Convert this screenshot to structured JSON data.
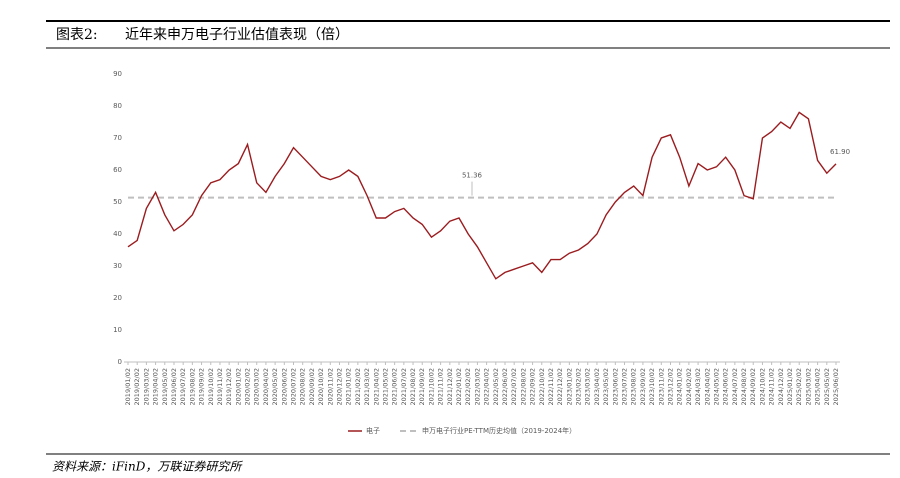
{
  "header": {
    "label": "图表2:",
    "title": "近年来申万电子行业估值表现（倍）"
  },
  "chart_data": {
    "type": "line",
    "categories": [
      "2019/01/02",
      "2019/02/02",
      "2019/03/02",
      "2019/04/02",
      "2019/05/02",
      "2019/06/02",
      "2019/07/02",
      "2019/08/02",
      "2019/09/02",
      "2019/10/02",
      "2019/11/02",
      "2019/12/02",
      "2020/01/02",
      "2020/02/02",
      "2020/03/02",
      "2020/04/02",
      "2020/05/02",
      "2020/06/02",
      "2020/07/02",
      "2020/08/02",
      "2020/09/02",
      "2020/10/02",
      "2020/11/02",
      "2020/12/02",
      "2021/01/02",
      "2021/02/02",
      "2021/03/02",
      "2021/04/02",
      "2021/05/02",
      "2021/06/02",
      "2021/07/02",
      "2021/08/02",
      "2021/09/02",
      "2021/10/02",
      "2021/11/02",
      "2021/12/02",
      "2022/01/02",
      "2022/02/02",
      "2022/03/02",
      "2022/04/02",
      "2022/05/02",
      "2022/06/02",
      "2022/07/02",
      "2022/08/02",
      "2022/09/02",
      "2022/10/02",
      "2022/11/02",
      "2022/12/02",
      "2023/01/02",
      "2023/02/02",
      "2023/03/02",
      "2023/04/02",
      "2023/05/02",
      "2023/06/02",
      "2023/07/02",
      "2023/08/02",
      "2023/09/02",
      "2023/10/02",
      "2023/11/02",
      "2023/12/02",
      "2024/01/02",
      "2024/02/02",
      "2024/03/02",
      "2024/04/02",
      "2024/05/02",
      "2024/06/02",
      "2024/07/02",
      "2024/08/02",
      "2024/09/02",
      "2024/10/02",
      "2024/11/02",
      "2024/12/02",
      "2025/01/02",
      "2025/02/02",
      "2025/03/02",
      "2025/04/02",
      "2025/05/02",
      "2025/06/02"
    ],
    "series": [
      {
        "name": "电子",
        "color": "#9b1c1f",
        "values": [
          36,
          38,
          48,
          53,
          46,
          41,
          43,
          46,
          52,
          56,
          57,
          60,
          62,
          68,
          56,
          53,
          58,
          62,
          67,
          64,
          61,
          58,
          57,
          58,
          60,
          58,
          52,
          45,
          45,
          47,
          48,
          45,
          43,
          39,
          41,
          44,
          45,
          40,
          36,
          31,
          26,
          28,
          29,
          30,
          31,
          28,
          32,
          32,
          34,
          35,
          37,
          40,
          46,
          50,
          53,
          55,
          52,
          64,
          70,
          71,
          64,
          55,
          62,
          60,
          61,
          64,
          60,
          52,
          51,
          70,
          72,
          75,
          73,
          78,
          76,
          63,
          59,
          61.9
        ],
        "value_labels": [
          null,
          null,
          null,
          null,
          null,
          null,
          null,
          null,
          null,
          null,
          null,
          null,
          null,
          null,
          null,
          null,
          null,
          null,
          null,
          null,
          null,
          null,
          null,
          null,
          null,
          null,
          null,
          null,
          null,
          null,
          null,
          null,
          null,
          null,
          null,
          null,
          null,
          null,
          null,
          null,
          null,
          null,
          null,
          null,
          null,
          null,
          null,
          null,
          null,
          null,
          null,
          null,
          null,
          null,
          null,
          null,
          null,
          null,
          null,
          null,
          null,
          null,
          null,
          null,
          null,
          null,
          null,
          null,
          null,
          null,
          null,
          null,
          null,
          null,
          null,
          null,
          null,
          "61.90"
        ]
      }
    ],
    "reference_lines": [
      {
        "name": "申万电子行业PE-TTM历史均值（2019-2024年）",
        "value": 51.36,
        "color": "#bfbfbf"
      }
    ],
    "ylim": [
      0,
      90
    ],
    "yticks": [
      0,
      10,
      20,
      30,
      40,
      50,
      60,
      70,
      80,
      90
    ],
    "grid": false
  },
  "footer": {
    "source": "资料来源：iFinD，万联证券研究所"
  }
}
